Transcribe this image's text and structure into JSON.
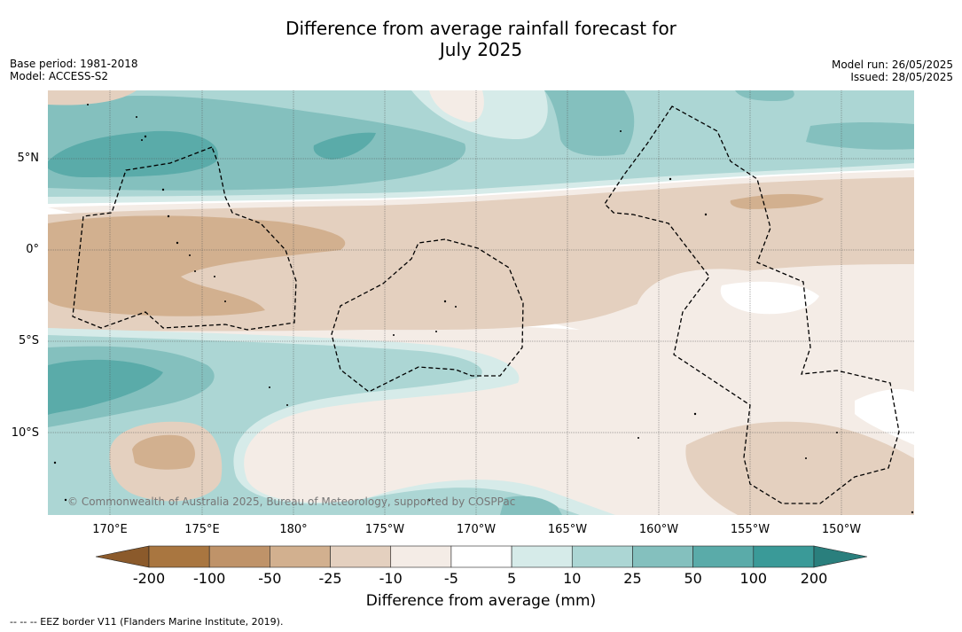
{
  "title_line1": "Difference from average rainfall forecast for",
  "title_line2": "July 2025",
  "base_period": "Base period: 1981-2018",
  "model": "Model: ACCESS-S2",
  "model_run": "Model run: 26/05/2025",
  "issued": "Issued: 28/05/2025",
  "copyright": "© Commonwealth of Australia 2025, Bureau of Meteorology, supported by COSPPac",
  "footer": "--  --  -- EEZ border V11 (Flanders Marine Institute, 2019).",
  "map": {
    "lat_ticks": [
      "5°N",
      "0°",
      "5°S",
      "10°S"
    ],
    "lon_ticks": [
      "170°E",
      "175°E",
      "180°",
      "175°W",
      "170°W",
      "165°W",
      "160°W",
      "155°W",
      "150°W"
    ]
  },
  "colorbar": {
    "title": "Difference from average (mm)",
    "ticks": [
      "-200",
      "-100",
      "-50",
      "-25",
      "-10",
      "-5",
      "5",
      "10",
      "25",
      "50",
      "100",
      "200"
    ],
    "colors": [
      "#8b5a2b",
      "#a97640",
      "#bf9369",
      "#d2b08f",
      "#e4d0bf",
      "#f4ece6",
      "#ffffff",
      "#d6ebe9",
      "#acd6d4",
      "#84c0be",
      "#5aaba9",
      "#3a9a98",
      "#2a7f7d"
    ]
  }
}
